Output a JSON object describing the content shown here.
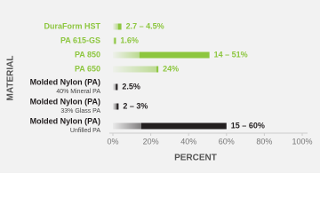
{
  "chart_data": {
    "type": "range-bar",
    "xlabel": "PERCENT",
    "ylabel": "MATERIAL",
    "categories": [
      "DuraForm HST",
      "PA 615-GS",
      "PA 850",
      "PA 650",
      "Molded Nylon (PA)",
      "Molded Nylon (PA)",
      "Molded Nylon (PA)"
    ],
    "sublabels": [
      null,
      null,
      null,
      null,
      "40% Mineral PA",
      "33% Glass PA",
      "Unfilled PA"
    ],
    "low": [
      2.7,
      null,
      14,
      null,
      null,
      2,
      15
    ],
    "high": [
      4.5,
      1.6,
      51,
      24,
      2.5,
      3,
      60
    ],
    "value_labels": [
      "2.7 – 4.5%",
      "1.6%",
      "14 – 51%",
      "24%",
      "2.5%",
      "2 – 3%",
      "15 – 60%"
    ],
    "colors": [
      "#8dc63f",
      "#8dc63f",
      "#8dc63f",
      "#8dc63f",
      "#231f20",
      "#231f20",
      "#231f20"
    ],
    "xlim": [
      0,
      100
    ],
    "xticks": [
      {
        "value": 0,
        "label": "0%"
      },
      {
        "value": 20,
        "label": "20%"
      },
      {
        "value": 40,
        "label": "40%"
      },
      {
        "value": 60,
        "label": "60%"
      },
      {
        "value": 80,
        "label": "80%"
      },
      {
        "value": 100,
        "label": "100%"
      }
    ]
  }
}
